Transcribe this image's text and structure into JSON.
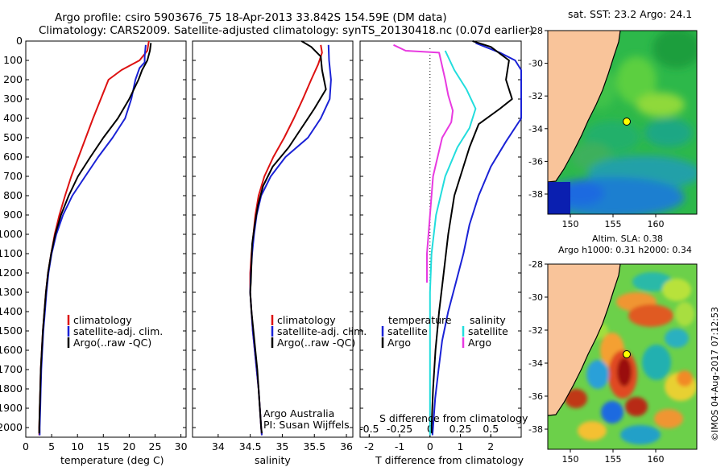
{
  "header": {
    "line1": "Argo profile: csiro 5903676_75 18-Apr-2013 33.842S 154.59E (DM data)",
    "line2": "Climatology: CARS2009. Satellite-adjusted climatology: synTS_20130418.nc (0.07d earlier)"
  },
  "side_text": "©IMOS 04-Aug-2017 07:12:53",
  "colors": {
    "climatology": "#dd1111",
    "satellite": "#1a22d6",
    "argo": "#000000",
    "sal_satellite": "#22dddd",
    "sal_argo": "#e83ae0",
    "land": "#f9c49a"
  },
  "chart_data": [
    {
      "type": "line",
      "xlabel": "temperature (deg C)",
      "ylabel": "",
      "xlim": [
        0,
        31
      ],
      "ylim": [
        2050,
        0
      ],
      "xticks": [
        "0",
        "5",
        "10",
        "15",
        "20",
        "25",
        "30"
      ],
      "yticks": [
        "0",
        "100",
        "200",
        "300",
        "400",
        "500",
        "600",
        "700",
        "800",
        "900",
        "1000",
        "1100",
        "1200",
        "1300",
        "1400",
        "1500",
        "1600",
        "1700",
        "1800",
        "1900",
        "2000"
      ],
      "legend": [
        "climatology",
        "satellite-adj. clim.",
        "Argo(..raw -QC)"
      ],
      "series": [
        {
          "name": "climatology",
          "points": [
            [
              23.8,
              0
            ],
            [
              23.5,
              50
            ],
            [
              22,
              100
            ],
            [
              18.5,
              150
            ],
            [
              16,
              200
            ],
            [
              14.5,
              300
            ],
            [
              13,
              400
            ],
            [
              11.6,
              500
            ],
            [
              10.2,
              600
            ],
            [
              8.8,
              700
            ],
            [
              7.6,
              800
            ],
            [
              6.5,
              900
            ],
            [
              5.6,
              1000
            ],
            [
              4.9,
              1100
            ],
            [
              4.3,
              1200
            ],
            [
              3.9,
              1300
            ],
            [
              3.6,
              1400
            ],
            [
              3.3,
              1500
            ],
            [
              3.1,
              1600
            ],
            [
              2.9,
              1700
            ],
            [
              2.8,
              1800
            ],
            [
              2.7,
              1900
            ],
            [
              2.6,
              2000
            ],
            [
              2.6,
              2040
            ]
          ]
        },
        {
          "name": "satellite-adj. clim.",
          "points": [
            [
              23.2,
              20
            ],
            [
              23,
              80
            ],
            [
              23,
              110
            ],
            [
              22,
              140
            ],
            [
              21.2,
              200
            ],
            [
              20.4,
              300
            ],
            [
              19.2,
              400
            ],
            [
              16.8,
              500
            ],
            [
              14,
              600
            ],
            [
              11.5,
              700
            ],
            [
              9,
              800
            ],
            [
              7.2,
              900
            ],
            [
              5.9,
              1000
            ],
            [
              5,
              1100
            ],
            [
              4.4,
              1200
            ],
            [
              4,
              1300
            ],
            [
              3.7,
              1400
            ],
            [
              3.4,
              1500
            ],
            [
              3.2,
              1600
            ],
            [
              3,
              1700
            ],
            [
              2.9,
              1800
            ],
            [
              2.8,
              1900
            ],
            [
              2.7,
              2000
            ],
            [
              2.7,
              2040
            ]
          ]
        },
        {
          "name": "Argo(..raw -QC)",
          "points": [
            [
              24.2,
              10
            ],
            [
              24,
              50
            ],
            [
              23.5,
              100
            ],
            [
              22.5,
              150
            ],
            [
              21.8,
              200
            ],
            [
              20,
              300
            ],
            [
              17.8,
              400
            ],
            [
              15,
              500
            ],
            [
              12.5,
              600
            ],
            [
              10.1,
              700
            ],
            [
              8.3,
              800
            ],
            [
              6.8,
              900
            ],
            [
              5.7,
              1000
            ],
            [
              4.9,
              1100
            ],
            [
              4.3,
              1200
            ],
            [
              3.9,
              1300
            ],
            [
              3.6,
              1400
            ],
            [
              3.3,
              1500
            ],
            [
              3.1,
              1600
            ],
            [
              2.9,
              1700
            ],
            [
              2.8,
              1800
            ],
            [
              2.7,
              1900
            ],
            [
              2.6,
              2000
            ],
            [
              2.6,
              2030
            ]
          ]
        }
      ]
    },
    {
      "type": "line",
      "xlabel": "salinity",
      "xlim": [
        33.6,
        36.1
      ],
      "ylim": [
        2050,
        0
      ],
      "xticks": [
        "34",
        "34.5",
        "35",
        "35.5",
        "36"
      ],
      "legend": [
        "climatology",
        "satellite-adj. clim.",
        "Argo(..raw -QC)"
      ],
      "annotation": [
        "Argo Australia",
        "PI: Susan Wijffels"
      ],
      "series": [
        {
          "name": "climatology",
          "points": [
            [
              35.6,
              20
            ],
            [
              35.62,
              60
            ],
            [
              35.56,
              120
            ],
            [
              35.45,
              200
            ],
            [
              35.32,
              300
            ],
            [
              35.18,
              400
            ],
            [
              35.03,
              500
            ],
            [
              34.86,
              600
            ],
            [
              34.72,
              700
            ],
            [
              34.63,
              800
            ],
            [
              34.58,
              900
            ],
            [
              34.55,
              1000
            ],
            [
              34.52,
              1100
            ],
            [
              34.5,
              1200
            ],
            [
              34.5,
              1300
            ],
            [
              34.52,
              1400
            ],
            [
              34.54,
              1500
            ],
            [
              34.57,
              1600
            ],
            [
              34.6,
              1700
            ],
            [
              34.63,
              1800
            ],
            [
              34.65,
              1900
            ],
            [
              34.67,
              2000
            ],
            [
              34.68,
              2040
            ]
          ]
        },
        {
          "name": "satellite-adj. clim.",
          "points": [
            [
              35.72,
              20
            ],
            [
              35.73,
              100
            ],
            [
              35.76,
              200
            ],
            [
              35.74,
              300
            ],
            [
              35.6,
              400
            ],
            [
              35.4,
              500
            ],
            [
              35.05,
              600
            ],
            [
              34.82,
              700
            ],
            [
              34.67,
              800
            ],
            [
              34.6,
              900
            ],
            [
              34.56,
              1000
            ],
            [
              34.53,
              1100
            ],
            [
              34.51,
              1200
            ],
            [
              34.5,
              1300
            ],
            [
              34.52,
              1400
            ],
            [
              34.54,
              1500
            ],
            [
              34.57,
              1600
            ],
            [
              34.6,
              1700
            ],
            [
              34.63,
              1800
            ],
            [
              34.65,
              1900
            ],
            [
              34.67,
              2000
            ],
            [
              34.68,
              2040
            ]
          ]
        },
        {
          "name": "Argo(..raw -QC)",
          "points": [
            [
              35.3,
              0
            ],
            [
              35.45,
              30
            ],
            [
              35.6,
              80
            ],
            [
              35.62,
              150
            ],
            [
              35.68,
              250
            ],
            [
              35.5,
              350
            ],
            [
              35.3,
              450
            ],
            [
              35.1,
              550
            ],
            [
              34.85,
              650
            ],
            [
              34.7,
              750
            ],
            [
              34.62,
              850
            ],
            [
              34.57,
              950
            ],
            [
              34.53,
              1050
            ],
            [
              34.52,
              1150
            ],
            [
              34.51,
              1250
            ],
            [
              34.5,
              1300
            ],
            [
              34.52,
              1400
            ],
            [
              34.55,
              1500
            ],
            [
              34.58,
              1600
            ],
            [
              34.61,
              1700
            ],
            [
              34.63,
              1800
            ],
            [
              34.65,
              1900
            ],
            [
              34.67,
              2000
            ],
            [
              34.68,
              2030
            ]
          ]
        }
      ]
    },
    {
      "type": "line",
      "xlabel": "T difference from climatology",
      "xlabel_top": "S difference from climatology",
      "xlim": [
        -2.3,
        3.0
      ],
      "ylim": [
        2050,
        0
      ],
      "xticks": [
        "-2",
        "-1",
        "0",
        "1",
        "2"
      ],
      "xticks_top": [
        "-0.5",
        "-0.25",
        "0",
        "0.25",
        "0.5"
      ],
      "legend_temperature": {
        "title": "temperature",
        "items": [
          "satellite",
          "Argo"
        ]
      },
      "legend_salinity": {
        "title": "salinity",
        "items": [
          "satellite",
          "Argo"
        ]
      },
      "series": [
        {
          "name": "temperature satellite",
          "points": [
            [
              1.5,
              10
            ],
            [
              2.3,
              60
            ],
            [
              2.8,
              100
            ],
            [
              3,
              150
            ],
            [
              3,
              400
            ],
            [
              2.5,
              520
            ],
            [
              2,
              650
            ],
            [
              1.6,
              800
            ],
            [
              1.3,
              950
            ],
            [
              1.1,
              1100
            ],
            [
              0.85,
              1250
            ],
            [
              0.6,
              1400
            ],
            [
              0.4,
              1550
            ],
            [
              0.28,
              1700
            ],
            [
              0.17,
              1850
            ],
            [
              0.1,
              2000
            ],
            [
              0.08,
              2040
            ]
          ]
        },
        {
          "name": "temperature Argo",
          "points": [
            [
              1.4,
              0
            ],
            [
              2,
              30
            ],
            [
              2.6,
              100
            ],
            [
              2.5,
              200
            ],
            [
              2.7,
              300
            ],
            [
              2.3,
              350
            ],
            [
              1.6,
              430
            ],
            [
              1.3,
              550
            ],
            [
              0.8,
              800
            ],
            [
              0.7,
              900
            ],
            [
              0.6,
              1000
            ],
            [
              0.45,
              1200
            ],
            [
              0.3,
              1400
            ],
            [
              0.18,
              1600
            ],
            [
              0.1,
              1800
            ],
            [
              0.05,
              2000
            ],
            [
              0.05,
              2030
            ]
          ]
        },
        {
          "name": "salinity satellite",
          "points": [
            [
              0.5,
              50
            ],
            [
              0.8,
              150
            ],
            [
              1.2,
              250
            ],
            [
              1.5,
              350
            ],
            [
              1.3,
              450
            ],
            [
              0.9,
              550
            ],
            [
              0.5,
              700
            ],
            [
              0.2,
              900
            ],
            [
              0.05,
              1100
            ],
            [
              0,
              1300
            ],
            [
              0,
              2040
            ]
          ]
        },
        {
          "name": "salinity Argo",
          "points": [
            [
              -1.2,
              20
            ],
            [
              -0.8,
              50
            ],
            [
              0.3,
              60
            ],
            [
              0.5,
              200
            ],
            [
              0.6,
              280
            ],
            [
              0.75,
              360
            ],
            [
              0.7,
              420
            ],
            [
              0.4,
              500
            ],
            [
              0.1,
              700
            ],
            [
              0,
              900
            ],
            [
              -0.1,
              1100
            ],
            [
              -0.1,
              1250
            ]
          ]
        }
      ]
    }
  ],
  "map_top": {
    "title": "sat. SST: 23.2 Argo: 24.1",
    "yticks": [
      "-28",
      "-30",
      "-32",
      "-34",
      "-36",
      "-38"
    ],
    "xticks": [
      "150",
      "155",
      "160"
    ]
  },
  "map_bottom": {
    "title1": "Altim. SLA: 0.38",
    "title2": "Argo h1000: 0.31 h2000: 0.34",
    "yticks": [
      "-28",
      "-30",
      "-32",
      "-34",
      "-36",
      "-38"
    ],
    "xticks": [
      "150",
      "155",
      "160"
    ]
  }
}
